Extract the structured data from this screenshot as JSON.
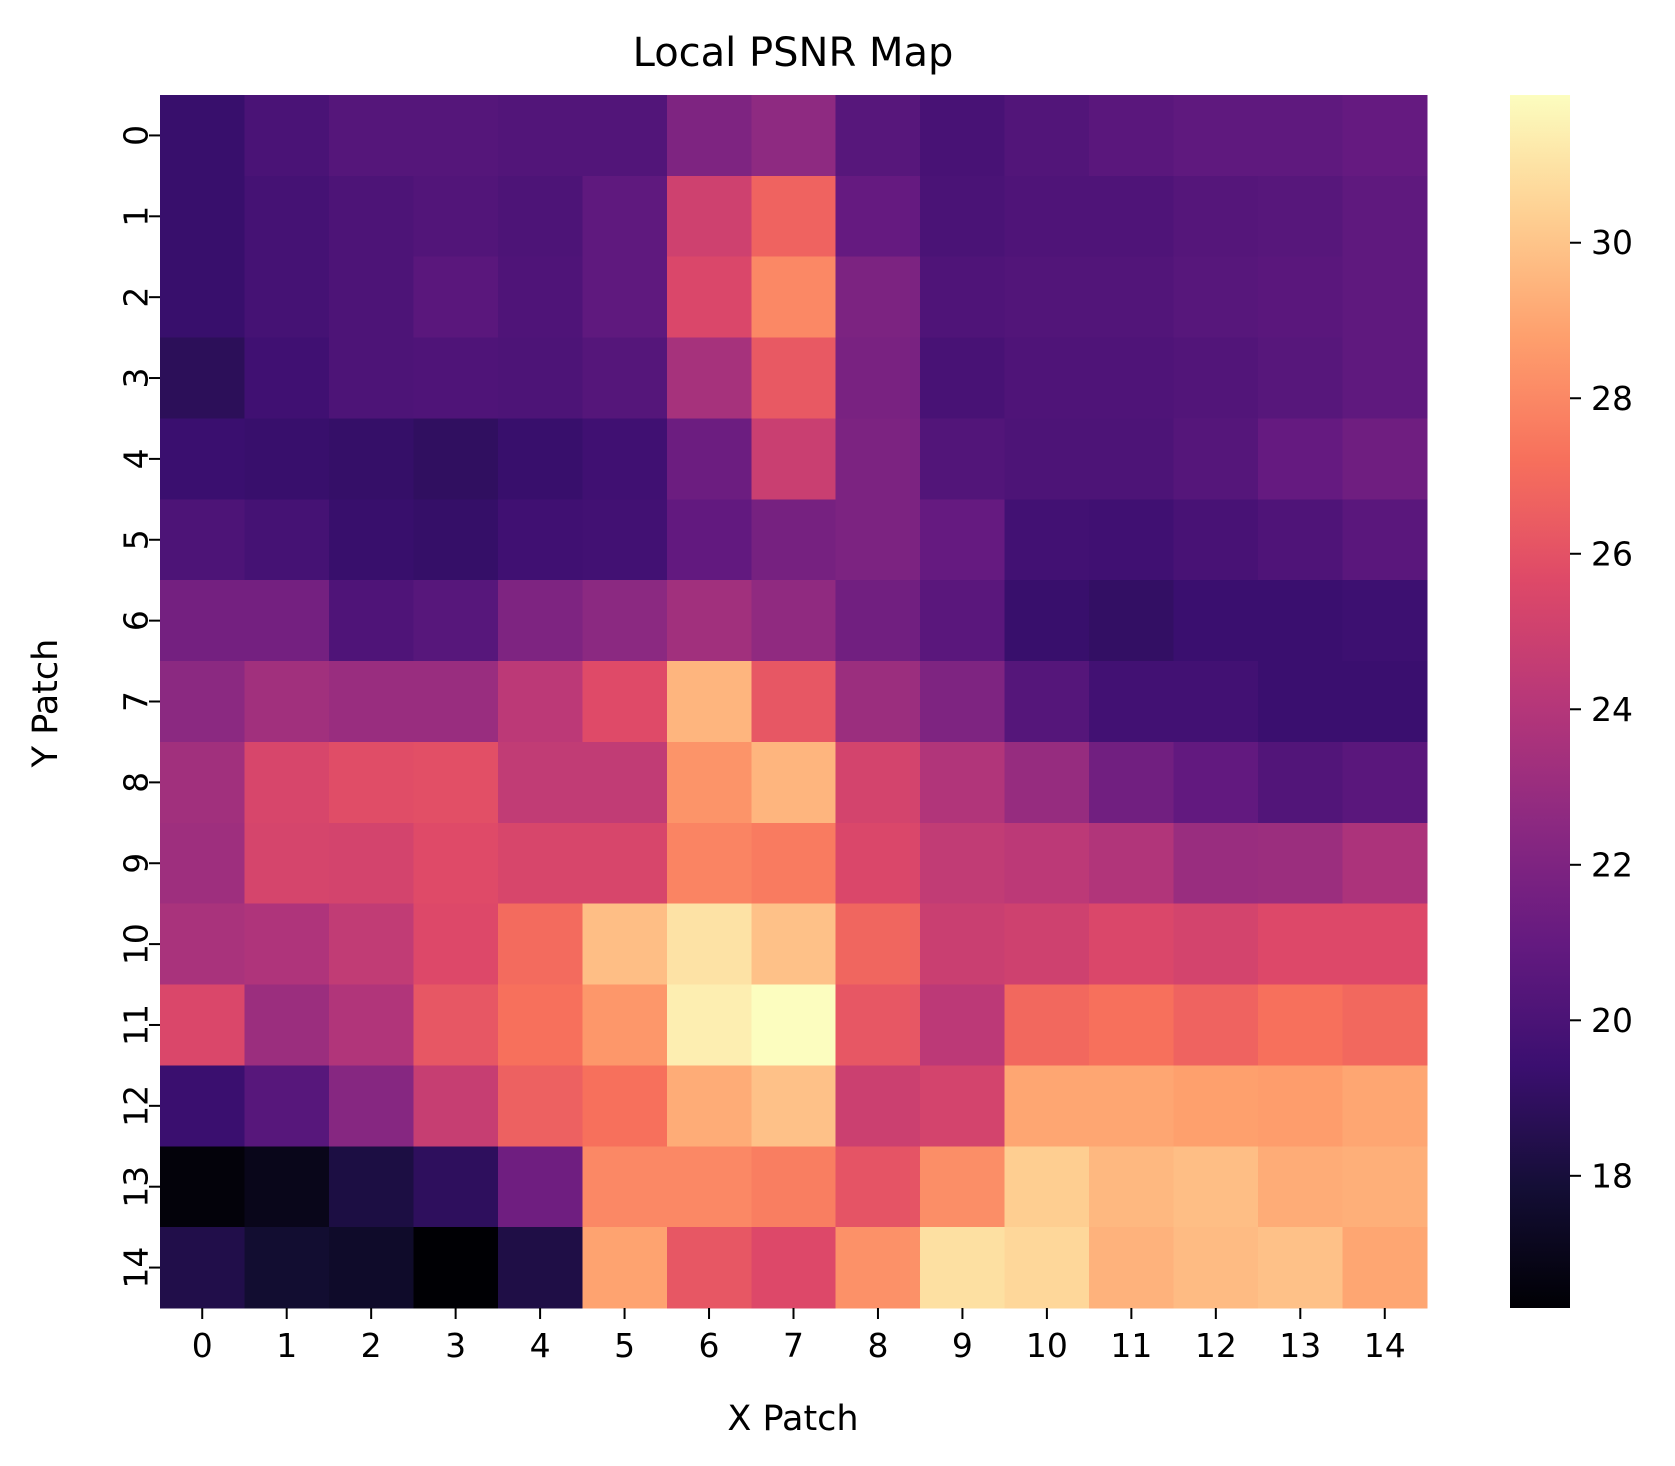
{
  "chart_data": {
    "type": "heatmap",
    "title": "Local PSNR Map",
    "xlabel": "X Patch",
    "ylabel": "Y Patch",
    "x_categories": [
      "0",
      "1",
      "2",
      "3",
      "4",
      "5",
      "6",
      "7",
      "8",
      "9",
      "10",
      "11",
      "12",
      "13",
      "14"
    ],
    "y_categories": [
      "0",
      "1",
      "2",
      "3",
      "4",
      "5",
      "6",
      "7",
      "8",
      "9",
      "10",
      "11",
      "12",
      "13",
      "14"
    ],
    "colormap": "magma",
    "color_range": [
      16.3,
      31.9
    ],
    "colorbar_ticks": [
      "18",
      "20",
      "22",
      "24",
      "26",
      "28",
      "30"
    ],
    "values": [
      [
        19.3,
        20.0,
        20.4,
        20.4,
        20.3,
        20.3,
        22.0,
        22.6,
        20.5,
        19.9,
        20.3,
        20.6,
        20.8,
        20.8,
        21.0
      ],
      [
        19.3,
        19.8,
        20.1,
        20.3,
        20.1,
        20.8,
        25.0,
        26.7,
        21.0,
        20.0,
        20.2,
        20.2,
        20.4,
        20.5,
        20.8
      ],
      [
        19.3,
        19.8,
        20.1,
        20.6,
        20.2,
        20.8,
        25.5,
        28.0,
        21.9,
        20.2,
        20.3,
        20.3,
        20.5,
        20.6,
        20.8
      ],
      [
        18.8,
        19.6,
        20.1,
        20.2,
        20.1,
        20.4,
        23.5,
        26.3,
        21.8,
        19.9,
        20.2,
        20.2,
        20.3,
        20.5,
        20.8
      ],
      [
        19.4,
        19.3,
        19.2,
        19.0,
        19.3,
        19.6,
        21.3,
        24.8,
        21.9,
        20.3,
        20.1,
        20.1,
        20.4,
        21.0,
        21.4
      ],
      [
        20.1,
        19.8,
        19.3,
        19.2,
        19.6,
        19.7,
        20.9,
        21.7,
        21.9,
        21.0,
        19.7,
        19.6,
        19.9,
        20.2,
        20.6
      ],
      [
        21.6,
        21.6,
        20.2,
        20.5,
        22.0,
        22.5,
        23.3,
        22.7,
        21.5,
        20.6,
        19.3,
        19.1,
        19.4,
        19.4,
        19.5
      ],
      [
        22.5,
        23.3,
        23.0,
        23.0,
        24.3,
        25.7,
        29.5,
        26.2,
        23.1,
        22.0,
        20.4,
        19.7,
        19.7,
        19.4,
        19.4
      ],
      [
        23.3,
        25.4,
        25.8,
        25.9,
        24.5,
        24.5,
        28.4,
        29.5,
        25.2,
        23.9,
        22.9,
        21.5,
        20.9,
        20.3,
        20.6
      ],
      [
        23.2,
        25.3,
        25.2,
        25.7,
        25.4,
        25.4,
        27.9,
        27.6,
        25.5,
        24.5,
        24.3,
        23.9,
        23.0,
        23.1,
        23.7
      ],
      [
        23.6,
        23.8,
        24.5,
        25.6,
        27.0,
        29.8,
        31.0,
        29.9,
        26.8,
        24.8,
        25.0,
        25.5,
        25.2,
        25.6,
        25.6
      ],
      [
        25.5,
        23.1,
        23.9,
        26.2,
        27.2,
        28.5,
        31.4,
        31.9,
        26.2,
        24.3,
        26.9,
        27.2,
        26.7,
        27.2,
        26.9
      ],
      [
        19.4,
        20.5,
        22.3,
        24.7,
        26.6,
        27.2,
        29.2,
        29.9,
        24.9,
        25.2,
        29.0,
        29.0,
        28.8,
        28.7,
        29.0
      ],
      [
        16.5,
        17.0,
        18.2,
        18.9,
        21.4,
        28.0,
        28.0,
        27.7,
        26.1,
        28.2,
        30.3,
        29.6,
        29.8,
        29.2,
        29.3
      ],
      [
        18.4,
        17.7,
        17.5,
        16.3,
        18.3,
        28.9,
        26.2,
        25.6,
        28.3,
        30.9,
        30.6,
        29.4,
        29.7,
        29.9,
        29.0
      ]
    ]
  }
}
